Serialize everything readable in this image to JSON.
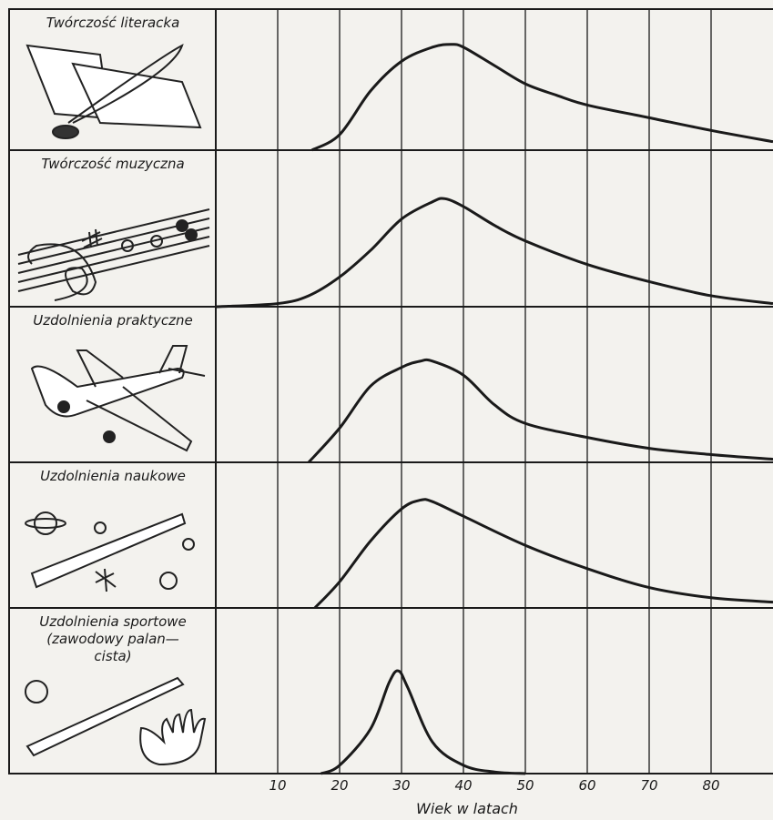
{
  "chart_data": {
    "type": "line",
    "xlabel": "Wiek w latach",
    "xlim": [
      0,
      90
    ],
    "xticks": [
      10,
      20,
      30,
      40,
      50,
      60,
      70,
      80
    ],
    "ylim": [
      0,
      100
    ],
    "grid": true,
    "color": "#1a1a1a",
    "series": [
      {
        "name": "Twórczość literacka",
        "x": [
          15.5,
          20,
          25,
          30,
          35,
          38,
          40,
          45,
          50,
          55,
          60,
          70,
          80,
          90
        ],
        "values": [
          0,
          11,
          42,
          63,
          73,
          75,
          73,
          60,
          47,
          39,
          32,
          23,
          14,
          6
        ]
      },
      {
        "name": "Twórczość muzyczna",
        "x": [
          0,
          10,
          15,
          20,
          25,
          30,
          35,
          37,
          40,
          45,
          50,
          60,
          70,
          80,
          90
        ],
        "values": [
          0,
          2,
          7,
          19,
          36,
          56,
          67,
          69,
          64,
          52,
          42,
          27,
          16,
          7,
          2
        ]
      },
      {
        "name": "Uzdolnienia praktyczne",
        "x": [
          15,
          20,
          25,
          30,
          33,
          35,
          40,
          45,
          50,
          60,
          70,
          80,
          90
        ],
        "values": [
          0,
          22,
          49,
          61,
          65,
          65,
          56,
          37,
          25,
          16,
          9,
          5,
          2
        ]
      },
      {
        "name": "Uzdolnienia naukowe",
        "x": [
          16,
          20,
          25,
          30,
          33,
          35,
          40,
          50,
          60,
          70,
          80,
          90
        ],
        "values": [
          0,
          18,
          46,
          68,
          74,
          73,
          63,
          43,
          27,
          14,
          7,
          4
        ]
      },
      {
        "name": "Uzdolnienia sportowe\n(zawodowy palan—\ncista)",
        "x": [
          17,
          20,
          25,
          28,
          29.5,
          31,
          35,
          40,
          45,
          50
        ],
        "values": [
          0,
          5,
          27,
          55,
          62,
          52,
          19,
          5,
          1,
          0
        ]
      }
    ]
  }
}
